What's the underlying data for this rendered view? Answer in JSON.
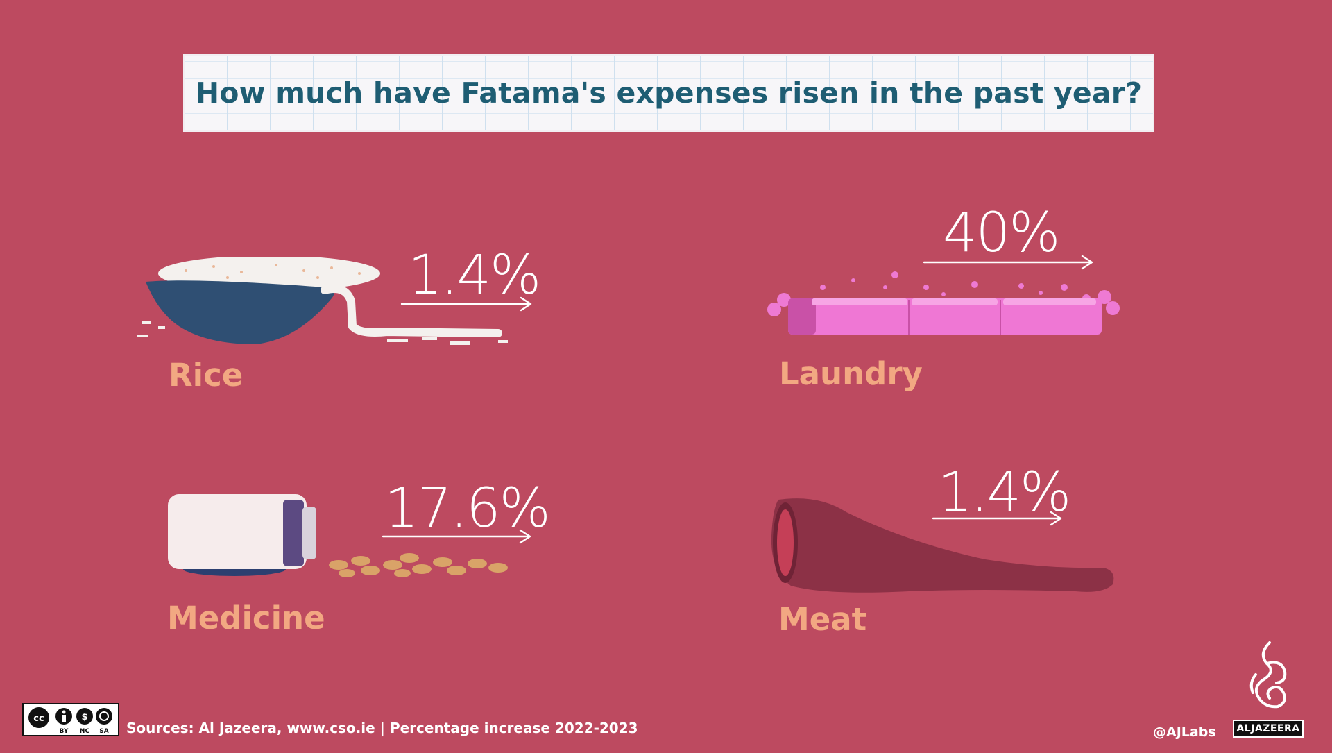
{
  "title": "How much have Fatama's expenses risen in the past year?",
  "items": [
    {
      "label": "Rice",
      "percent": "1.4%",
      "icon": "rice-bowl-icon"
    },
    {
      "label": "Laundry",
      "percent": "40%",
      "icon": "soap-bar-icon"
    },
    {
      "label": "Medicine",
      "percent": "17.6%",
      "icon": "pill-bottle-icon"
    },
    {
      "label": "Meat",
      "percent": "1.4%",
      "icon": "meat-leg-icon"
    }
  ],
  "footer": {
    "license": [
      "BY",
      "NC",
      "SA"
    ],
    "sources": "Sources: Al Jazeera, www.cso.ie  | Percentage increase 2022-2023",
    "handle": "@AJLabs",
    "brand": "ALJAZEERA"
  },
  "colors": {
    "background": "#bd4a60",
    "title": "#1e5d73",
    "label": "#f2a882",
    "value": "#ffffff"
  }
}
